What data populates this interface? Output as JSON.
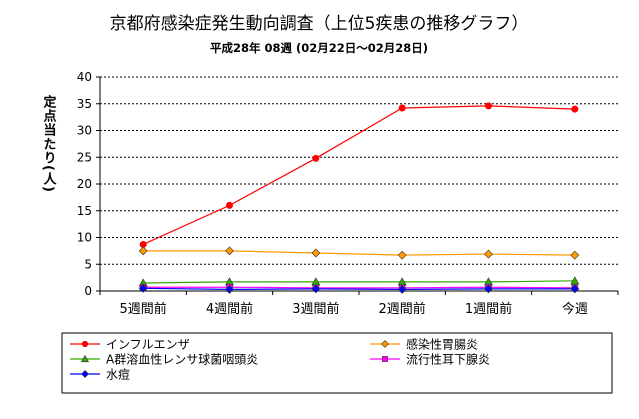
{
  "chart_data": {
    "type": "line",
    "title": "京都府感染症発生動向調査（上位5疾患の推移グラフ）",
    "subtitle": "平成28年 08週 (02月22日～02月28日)",
    "ylabel": "定点当たり(人)",
    "xlabel": "",
    "ylim": [
      0,
      40
    ],
    "yticks": [
      0,
      5,
      10,
      15,
      20,
      25,
      30,
      35,
      40
    ],
    "grid": true,
    "legend_position": "bottom",
    "categories": [
      "5週間前",
      "4週間前",
      "3週間前",
      "2週間前",
      "1週間前",
      "今週"
    ],
    "series": [
      {
        "name": "インフルエンザ",
        "color": "#ff0000",
        "marker": "circle",
        "values": [
          8.7,
          16.0,
          24.8,
          34.2,
          34.6,
          34.0
        ]
      },
      {
        "name": "感染性胃腸炎",
        "color": "#ff9900",
        "marker": "diamond",
        "values": [
          7.5,
          7.5,
          7.1,
          6.7,
          6.9,
          6.7
        ]
      },
      {
        "name": "A群溶血性レンサ球菌咽頭炎",
        "color": "#33aa00",
        "marker": "triangle",
        "values": [
          1.5,
          1.7,
          1.7,
          1.7,
          1.7,
          1.9
        ]
      },
      {
        "name": "流行性耳下腺炎",
        "color": "#ff00ff",
        "marker": "square",
        "values": [
          0.7,
          0.7,
          0.6,
          0.6,
          0.7,
          0.6
        ]
      },
      {
        "name": "水痘",
        "color": "#0000ff",
        "marker": "diamond",
        "values": [
          0.5,
          0.3,
          0.4,
          0.3,
          0.4,
          0.4
        ]
      }
    ]
  }
}
